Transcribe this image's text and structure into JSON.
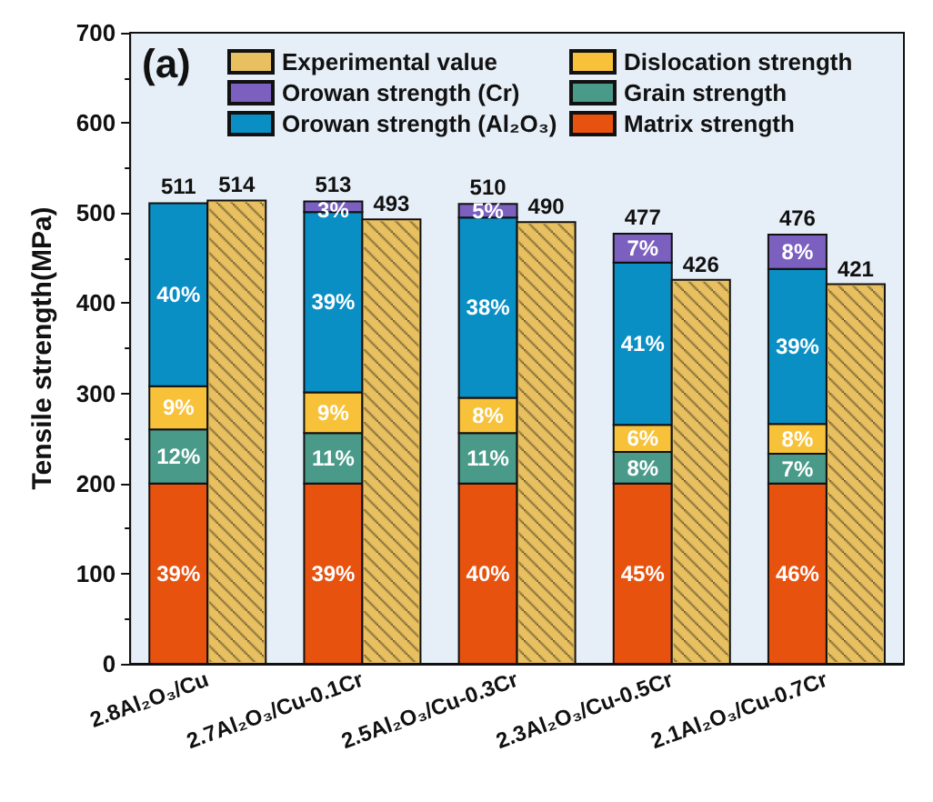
{
  "chart_data": {
    "type": "bar",
    "title": "(a)",
    "ylabel": "Tensile strength(MPa)",
    "categories": [
      "2.8Al₂O₃/Cu",
      "2.7Al₂O₃/Cu-0.1Cr",
      "2.5Al₂O₃/Cu-0.3Cr",
      "2.3Al₂O₃/Cu-0.5Cr",
      "2.1Al₂O₃/Cu-0.7Cr"
    ],
    "series": [
      {
        "name": "Matrix strength",
        "color": "#e8520f",
        "base": [
          0,
          0,
          0,
          0,
          0
        ],
        "values": [
          200,
          200,
          200,
          200,
          200
        ]
      },
      {
        "name": "Grain strength",
        "color": "#4a9a8a",
        "base": [
          200,
          200,
          200,
          200,
          200
        ],
        "values": [
          60,
          56,
          56,
          35,
          33
        ]
      },
      {
        "name": "Dislocation strength",
        "color": "#f7c23a",
        "base": [
          260,
          256,
          256,
          235,
          233
        ],
        "values": [
          48,
          45,
          39,
          30,
          33
        ]
      },
      {
        "name": "Orowan strength (Al₂O₃)",
        "color": "#0a8fc4",
        "base": [
          308,
          301,
          295,
          265,
          266
        ],
        "values": [
          203,
          200,
          200,
          180,
          172
        ]
      },
      {
        "name": "Orowan strength (Cr)",
        "color": "#7b60c0",
        "base": [
          null,
          501,
          495,
          445,
          438
        ],
        "values": [
          null,
          12,
          15,
          32,
          38
        ]
      },
      {
        "name": "Experimental value",
        "color": "#e8c060",
        "values": [
          514,
          493,
          490,
          426,
          421
        ],
        "value_labels": [
          "514",
          "493",
          "490",
          "426",
          "421"
        ]
      }
    ],
    "annotations": [
      {
        "text": "511",
        "x": "2.8Al₂O₃/Cu",
        "y": 511
      },
      {
        "text": "513",
        "x": "2.7Al₂O₃/Cu-0.1Cr",
        "y": 513
      },
      {
        "text": "510",
        "x": "2.5Al₂O₃/Cu-0.3Cr",
        "y": 510
      },
      {
        "text": "477",
        "x": "2.3Al₂O₃/Cu-0.5Cr",
        "y": 477
      },
      {
        "text": "476",
        "x": "2.1Al₂O₃/Cu-0.7Cr",
        "y": 476
      },
      {
        "text": "39%",
        "x": "2.8Al₂O₃/Cu",
        "y": 100
      },
      {
        "text": "12%",
        "x": "2.8Al₂O₃/Cu",
        "y": 230
      },
      {
        "text": "9%",
        "x": "2.8Al₂O₃/Cu",
        "y": 284
      },
      {
        "text": "40%",
        "x": "2.8Al₂O₃/Cu",
        "y": 410
      },
      {
        "text": "39%",
        "x": "2.7Al₂O₃/Cu-0.1Cr",
        "y": 100
      },
      {
        "text": "11%",
        "x": "2.7Al₂O₃/Cu-0.1Cr",
        "y": 228
      },
      {
        "text": "9%",
        "x": "2.7Al₂O₃/Cu-0.1Cr",
        "y": 278
      },
      {
        "text": "39%",
        "x": "2.7Al₂O₃/Cu-0.1Cr",
        "y": 401
      },
      {
        "text": "3%",
        "x": "2.7Al₂O₃/Cu-0.1Cr",
        "y": 503
      },
      {
        "text": "40%",
        "x": "2.5Al₂O₃/Cu-0.3Cr",
        "y": 100
      },
      {
        "text": "11%",
        "x": "2.5Al₂O₃/Cu-0.3Cr",
        "y": 228
      },
      {
        "text": "8%",
        "x": "2.5Al₂O₃/Cu-0.3Cr",
        "y": 275
      },
      {
        "text": "38%",
        "x": "2.5Al₂O₃/Cu-0.3Cr",
        "y": 395
      },
      {
        "text": "5%",
        "x": "2.5Al₂O₃/Cu-0.3Cr",
        "y": 502
      },
      {
        "text": "45%",
        "x": "2.3Al₂O₃/Cu-0.5Cr",
        "y": 100
      },
      {
        "text": "8%",
        "x": "2.3Al₂O₃/Cu-0.5Cr",
        "y": 217
      },
      {
        "text": "6%",
        "x": "2.3Al₂O₃/Cu-0.5Cr",
        "y": 250
      },
      {
        "text": "41%",
        "x": "2.3Al₂O₃/Cu-0.5Cr",
        "y": 355
      },
      {
        "text": "7%",
        "x": "2.3Al₂O₃/Cu-0.5Cr",
        "y": 461
      },
      {
        "text": "46%",
        "x": "2.1Al₂O₃/Cu-0.7Cr",
        "y": 100
      },
      {
        "text": "7%",
        "x": "2.1Al₂O₃/Cu-0.7Cr",
        "y": 216
      },
      {
        "text": "8%",
        "x": "2.1Al₂O₃/Cu-0.7Cr",
        "y": 249
      },
      {
        "text": "39%",
        "x": "2.1Al₂O₃/Cu-0.7Cr",
        "y": 352
      },
      {
        "text": "8%",
        "x": "2.1Al₂O₃/Cu-0.7Cr",
        "y": 457
      }
    ],
    "ylim": [
      0,
      700
    ],
    "yticks": [
      0,
      100,
      200,
      300,
      400,
      500,
      600,
      700
    ],
    "grid": false,
    "legend": "top left"
  }
}
